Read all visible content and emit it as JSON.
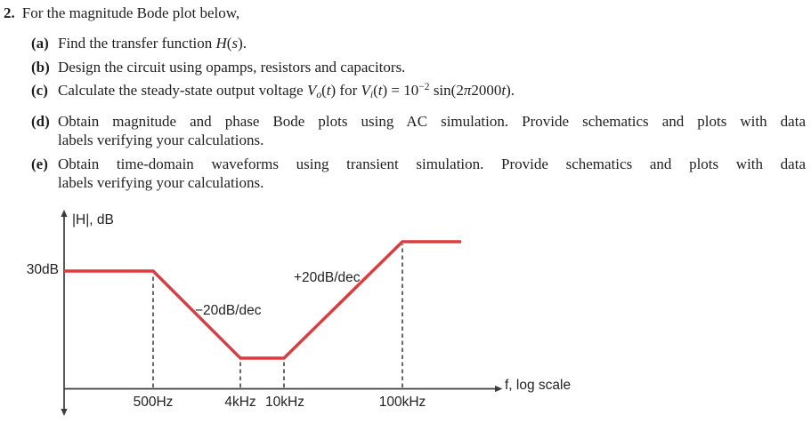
{
  "page": {
    "background": "#ffffff",
    "text_color": "#1f1f1f"
  },
  "problem": {
    "number": "2.",
    "title": "For the magnitude Bode plot below,",
    "items": [
      {
        "label": "(a)",
        "rich": [
          {
            "t": "Find the transfer function "
          },
          {
            "t": "H",
            "i": true
          },
          {
            "t": "("
          },
          {
            "t": "s",
            "i": true
          },
          {
            "t": ")."
          }
        ]
      },
      {
        "label": "(b)",
        "text": "Design the circuit using opamps, resistors and capacitors."
      },
      {
        "label": "(c)",
        "rich": [
          {
            "t": "Calculate the steady-state output voltage "
          },
          {
            "t": "V",
            "i": true
          },
          {
            "t": "o",
            "v": "sub",
            "i": true
          },
          {
            "t": "("
          },
          {
            "t": "t",
            "i": true
          },
          {
            "t": ") for "
          },
          {
            "t": "V",
            "i": true
          },
          {
            "t": "i",
            "v": "sub",
            "i": true
          },
          {
            "t": "("
          },
          {
            "t": "t",
            "i": true
          },
          {
            "t": ") = 10"
          },
          {
            "t": "−2",
            "v": "sup"
          },
          {
            "t": " sin(2"
          },
          {
            "t": "π",
            "i": true
          },
          {
            "t": "2000"
          },
          {
            "t": "t",
            "i": true
          },
          {
            "t": ")."
          }
        ]
      },
      {
        "label": "(d)",
        "line1": "Obtain magnitude and phase Bode plots using AC simulation. Provide schematics and plots with data",
        "line2": "labels verifying your calculations."
      },
      {
        "label": "(e)",
        "line1": "Obtain time-domain waveforms using transient simulation. Provide schematics and plots with data",
        "line2": "labels verifying your calculations."
      }
    ]
  },
  "chart_data": {
    "type": "line",
    "title": "",
    "xlabel": "f, log scale",
    "ylabel": "|H|, dB",
    "x_scale": "log",
    "x_tick_labels": [
      "500Hz",
      "4kHz",
      "10kHz",
      "100kHz"
    ],
    "y_tick_labels": [
      "30dB"
    ],
    "annotations": [
      {
        "id": "down-slope",
        "text": "−20dB/dec"
      },
      {
        "id": "up-slope",
        "text": "+20dB/dec"
      }
    ],
    "slopes": [
      {
        "from_hz": 500,
        "to_hz": 4000,
        "slope_db_per_decade": -20
      },
      {
        "from_hz": 10000,
        "to_hz": 100000,
        "slope_db_per_decade": 20
      }
    ],
    "series": [
      {
        "name": "|H| asymptotic magnitude (dB)",
        "points": [
          {
            "f_hz": 60,
            "db": 30
          },
          {
            "f_hz": 500,
            "db": 30
          },
          {
            "f_hz": 4000,
            "db": 12
          },
          {
            "f_hz": 10000,
            "db": 12
          },
          {
            "f_hz": 100000,
            "db": 32
          },
          {
            "f_hz": 300000,
            "db": 32
          }
        ]
      }
    ],
    "dashed_guides_f_hz": [
      500,
      4000,
      10000,
      100000
    ],
    "colors": {
      "line": "#e03a3c",
      "axis": "#3c3c3c",
      "guide": "#4f4f4f"
    }
  }
}
